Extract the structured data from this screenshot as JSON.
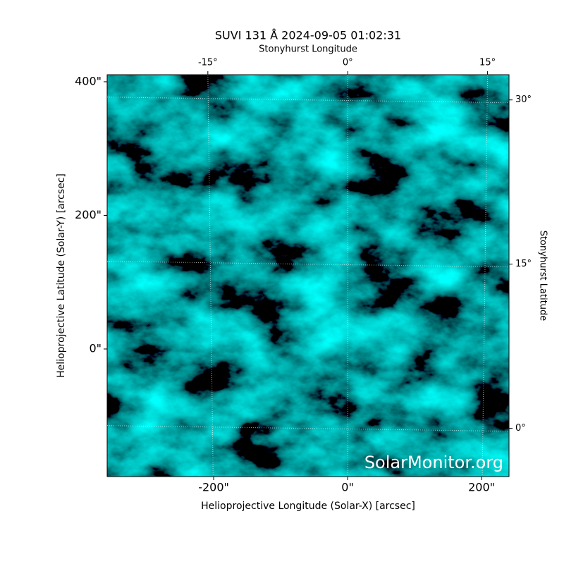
{
  "chart_data": {
    "type": "image",
    "title": "SUVI 131 Å 2024-09-05 01:02:31",
    "xlabel": "Helioprojective Longitude (Solar-X) [arcsec]",
    "ylabel": "Helioprojective Latitude (Solar-Y) [arcsec]",
    "x2label": "Stonyhurst Longitude",
    "y2label": "Stonyhurst Latitude",
    "watermark": "SolarMonitor.org",
    "xlim": [
      -359,
      241
    ],
    "ylim": [
      -191,
      410.5
    ],
    "xticks": [
      {
        "value": -200,
        "label": "-200\""
      },
      {
        "value": 0,
        "label": "0\""
      },
      {
        "value": 200,
        "label": "200\""
      }
    ],
    "yticks": [
      {
        "value": 0,
        "label": "0\""
      },
      {
        "value": 200,
        "label": "200\""
      },
      {
        "value": 400,
        "label": "400\""
      }
    ],
    "x2lim": [
      -25.8,
      17.3
    ],
    "y2lim": [
      -4.4,
      32.3
    ],
    "x2ticks": [
      {
        "value": -15,
        "label": "-15°"
      },
      {
        "value": 0,
        "label": "0°"
      },
      {
        "value": 15,
        "label": "15°"
      }
    ],
    "y2ticks": [
      {
        "value": 0,
        "label": "0°"
      },
      {
        "value": 15,
        "label": "15°"
      },
      {
        "value": 30,
        "label": "30°"
      }
    ],
    "grid": true
  }
}
